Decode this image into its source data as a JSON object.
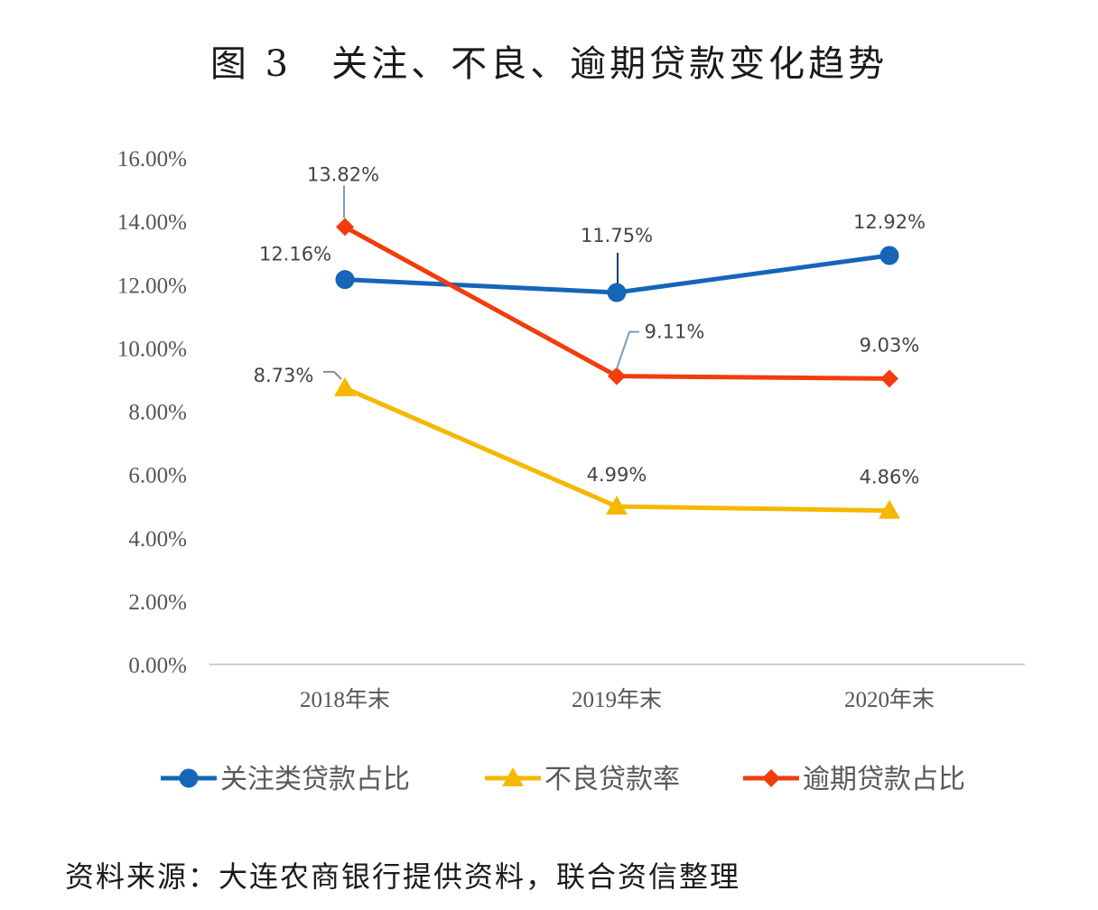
{
  "chart_data": {
    "type": "line",
    "title": "图 3　关注、不良、逾期贷款变化趋势",
    "categories": [
      "2018年末",
      "2019年末",
      "2020年末"
    ],
    "y_ticks": [
      "0.00%",
      "2.00%",
      "4.00%",
      "6.00%",
      "8.00%",
      "10.00%",
      "12.00%",
      "14.00%",
      "16.00%"
    ],
    "ylim": [
      0,
      16
    ],
    "xlabel": "",
    "ylabel": "",
    "grid": false,
    "legend_position": "bottom",
    "series": [
      {
        "name": "关注类贷款占比",
        "color": "#1565b8",
        "marker": "circle",
        "values": [
          12.16,
          11.75,
          12.92
        ],
        "labels": [
          "12.16%",
          "11.75%",
          "12.92%"
        ]
      },
      {
        "name": "不良贷款率",
        "color": "#f5b800",
        "marker": "triangle",
        "values": [
          8.73,
          4.99,
          4.86
        ],
        "labels": [
          "8.73%",
          "4.99%",
          "4.86%"
        ]
      },
      {
        "name": "逾期贷款占比",
        "color": "#f23c0c",
        "marker": "diamond",
        "values": [
          13.82,
          9.11,
          9.03
        ],
        "labels": [
          "13.82%",
          "9.11%",
          "9.03%"
        ]
      }
    ]
  },
  "source_note": "资料来源：大连农商银行提供资料，联合资信整理"
}
